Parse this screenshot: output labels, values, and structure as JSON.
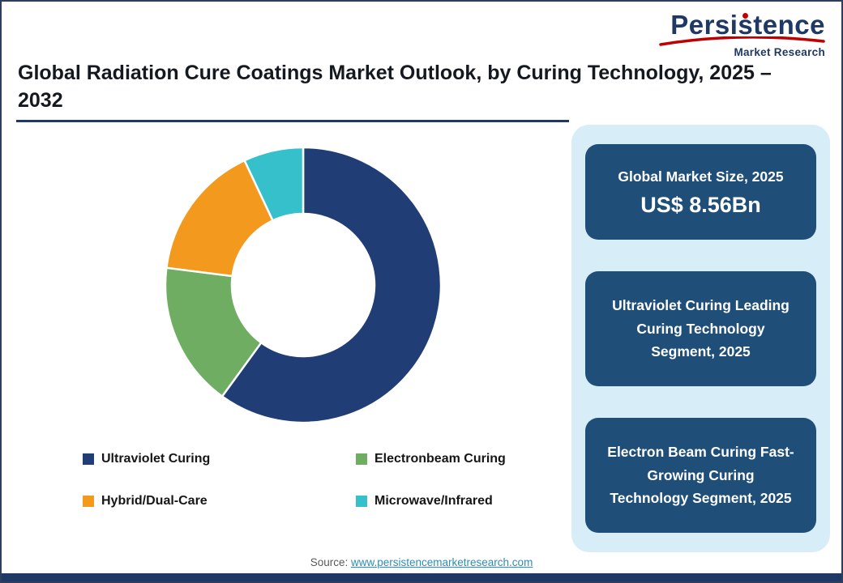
{
  "logo": {
    "name": "Persistence",
    "subtitle": "Market Research",
    "accent_red": "#c00000",
    "navy": "#1f3864"
  },
  "title": "Global Radiation Cure Coatings Market Outlook, by Curing Technology, 2025 – 2032",
  "chart_data": {
    "type": "pie",
    "subtype": "donut",
    "title": "Global Radiation Cure Coatings Market Outlook, by Curing Technology, 2025 – 2032",
    "categories": [
      "Ultraviolet Curing",
      "Electronbeam Curing",
      "Hybrid/Dual-Care",
      "Microwave/Infrared"
    ],
    "values": [
      60,
      17,
      16,
      7
    ],
    "colors": [
      "#203e75",
      "#6fad62",
      "#f39a1e",
      "#36c0cb"
    ],
    "start_angle_deg": 0,
    "direction": "clockwise",
    "hole_ratio": 0.52,
    "legend_position": "bottom",
    "value_labels_shown": false
  },
  "panel": {
    "cards": [
      {
        "heading": "Global Market Size, 2025",
        "value": "US$ 8.56Bn"
      },
      {
        "text": "Ultraviolet Curing Leading Curing Technology Segment, 2025"
      },
      {
        "text": "Electron Beam Curing Fast-Growing Curing Technology Segment, 2025"
      }
    ]
  },
  "footer": {
    "source_label": "Source:",
    "source_link": "www.persistencemarketresearch.com"
  }
}
